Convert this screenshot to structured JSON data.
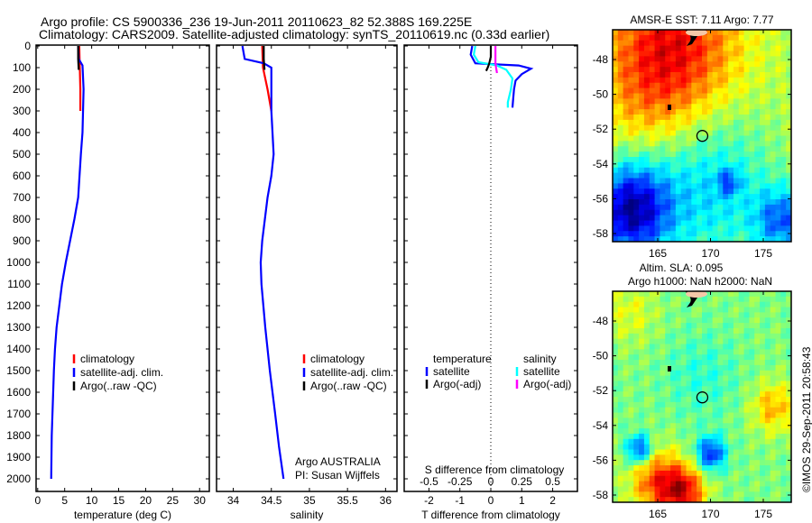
{
  "titles": {
    "line1": "Argo profile: CS 5900336_236 19-Jun-2011 20110623_82 52.388S 169.225E",
    "line2": "Climatology: CARS2009. Satellite-adjusted climatology: synTS_20110619.nc (0.33d earlier)"
  },
  "chart_data": [
    {
      "type": "line",
      "name": "temperature",
      "xlabel": "temperature (deg C)",
      "xlim": [
        -0.3,
        31.8
      ],
      "ylim": [
        0,
        2060
      ],
      "yticks": [
        0,
        100,
        200,
        300,
        400,
        500,
        600,
        700,
        800,
        900,
        1000,
        1100,
        1200,
        1300,
        1400,
        1500,
        1600,
        1700,
        1800,
        1900,
        2000
      ],
      "xticks": [
        0,
        5,
        10,
        15,
        20,
        25,
        30
      ],
      "legend": [
        "climatology",
        "satellite-adj. clim.",
        "Argo(..raw -QC)"
      ],
      "series": [
        {
          "name": "climatology",
          "color": "#ff0000",
          "x": [
            7.7,
            7.8,
            7.9,
            7.9
          ],
          "y": [
            0,
            100,
            200,
            300
          ]
        },
        {
          "name": "satellite-adj. clim.",
          "color": "#0000ff",
          "x": [
            7.5,
            7.6,
            8.3,
            8.5,
            8.3,
            8.0,
            7.5,
            6.8,
            6.0,
            5.2,
            4.5,
            4.0,
            3.5,
            3.2,
            3.0,
            2.8,
            2.6,
            2.5
          ],
          "y": [
            0,
            60,
            90,
            200,
            400,
            500,
            700,
            800,
            900,
            1000,
            1100,
            1200,
            1300,
            1400,
            1500,
            1650,
            1800,
            2000
          ]
        },
        {
          "name": "Argo(..raw -QC)",
          "color": "#000000",
          "x": [
            7.5,
            7.5,
            7.6
          ],
          "y": [
            0,
            60,
            110
          ]
        }
      ]
    },
    {
      "type": "line",
      "name": "salinity",
      "xlabel": "salinity",
      "xlim": [
        33.78,
        36.15
      ],
      "ylim": [
        0,
        2060
      ],
      "xticks": [
        34,
        34.5,
        35,
        35.5,
        36
      ],
      "legend": [
        "climatology",
        "satellite-adj. clim.",
        "Argo(..raw -QC)"
      ],
      "annotation": [
        "Argo AUSTRALIA",
        "PI: Susan Wijffels"
      ],
      "series": [
        {
          "name": "climatology",
          "color": "#ff0000",
          "x": [
            34.38,
            34.39,
            34.45,
            34.5
          ],
          "y": [
            0,
            100,
            200,
            300
          ]
        },
        {
          "name": "satellite-adj. clim.",
          "color": "#0000ff",
          "x": [
            34.12,
            34.15,
            34.4,
            34.5,
            34.5,
            34.53,
            34.5,
            34.45,
            34.38,
            34.36,
            34.37,
            34.42,
            34.48,
            34.55,
            34.6,
            34.66
          ],
          "y": [
            0,
            60,
            80,
            100,
            300,
            500,
            600,
            700,
            900,
            1000,
            1100,
            1300,
            1500,
            1700,
            1850,
            2000
          ]
        },
        {
          "name": "Argo(..raw -QC)",
          "color": "#000000",
          "x": [
            34.4,
            34.4,
            34.41
          ],
          "y": [
            0,
            60,
            110
          ]
        }
      ]
    },
    {
      "type": "line",
      "name": "difference",
      "xlabel": "T difference from climatology",
      "xlabel_top": "S difference from climatology",
      "xlim": [
        -2.8,
        2.8
      ],
      "ylim": [
        0,
        2060
      ],
      "xticks": [
        "-2",
        "-1",
        "0",
        "1",
        "2"
      ],
      "xticks_top": [
        "-0.5",
        "-0.25",
        "0",
        "0.25",
        "0.5"
      ],
      "legend_headers": [
        "temperature",
        "salinity"
      ],
      "legend": [
        "satellite",
        "Argo(-adj)",
        "satellite",
        "Argo(-adj)"
      ],
      "series": [
        {
          "name": "T satellite",
          "color": "#0000ff",
          "x": [
            -0.6,
            -0.65,
            -0.5,
            0.9,
            1.3,
            1.0,
            0.8,
            0.75,
            0.72,
            0.7
          ],
          "y": [
            0,
            40,
            80,
            90,
            105,
            130,
            160,
            200,
            250,
            285
          ]
        },
        {
          "name": "S satellite (T-scale)",
          "color": "#00ffff",
          "x": [
            -0.5,
            -0.55,
            -0.4,
            0.2,
            0.5,
            0.7,
            0.65,
            0.6,
            0.55,
            0.55
          ],
          "y": [
            0,
            40,
            75,
            90,
            110,
            150,
            200,
            230,
            260,
            285
          ]
        },
        {
          "name": "T Argo",
          "color": "#000000",
          "x": [
            0,
            0,
            -0.05,
            -0.1,
            -0.15
          ],
          "y": [
            0,
            50,
            80,
            100,
            115
          ]
        },
        {
          "name": "S Argo (T-scale)",
          "color": "#ff00ff",
          "x": [
            0.15,
            0.15,
            0.17,
            0.2
          ],
          "y": [
            0,
            80,
            100,
            125
          ]
        }
      ]
    },
    {
      "type": "heatmap",
      "name": "sst-map",
      "title": "AMSR-E SST: 7.11 Argo: 7.77",
      "xticks": [
        "165",
        "170",
        "175"
      ],
      "yticks": [
        "-48",
        "-50",
        "-52",
        "-54",
        "-56",
        "-58"
      ],
      "argo_position": [
        169.225,
        -52.388
      ]
    },
    {
      "type": "heatmap",
      "name": "sla-map",
      "title1": "Altim. SLA: 0.095",
      "title2": "Argo h1000: NaN h2000: NaN",
      "xticks": [
        "165",
        "170",
        "175"
      ],
      "yticks": [
        "-48",
        "-50",
        "-52",
        "-54",
        "-56",
        "-58"
      ],
      "argo_position": [
        169.225,
        -52.388
      ],
      "credit": "©IMOS 29-Sep-2011 20:58:43"
    }
  ]
}
